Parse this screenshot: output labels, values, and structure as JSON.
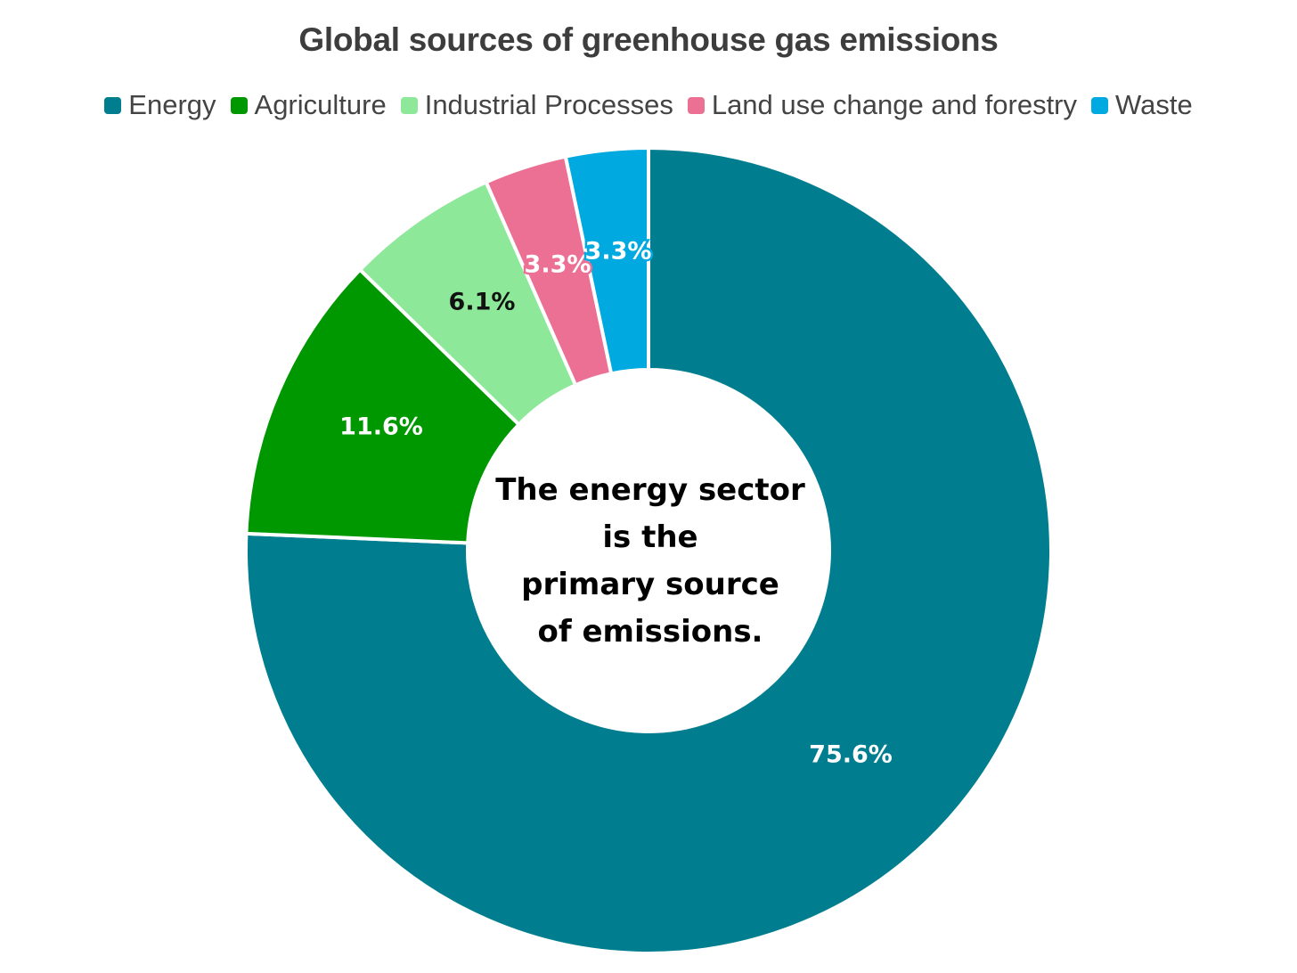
{
  "chart_data": {
    "type": "pie",
    "title": "Global sources of greenhouse gas emissions",
    "legend_position": "top",
    "slices": [
      {
        "name": "Energy",
        "value": 75.6,
        "label": "75.6%",
        "color": "#007d8e",
        "label_color": "#ffffff"
      },
      {
        "name": "Agriculture",
        "value": 11.6,
        "label": "11.6%",
        "color": "#009800",
        "label_color": "#ffffff"
      },
      {
        "name": "Industrial Processes",
        "value": 6.1,
        "label": "6.1%",
        "color": "#8ee89a",
        "label_color": "#111111"
      },
      {
        "name": "Land use change and forestry",
        "value": 3.3,
        "label": "3.3%",
        "color": "#ec7094",
        "label_color": "#ffffff"
      },
      {
        "name": "Waste",
        "value": 3.3,
        "label": "3.3%",
        "color": "#00a9e0",
        "label_color": "#ffffff"
      }
    ],
    "center_annotation": [
      "The energy sector",
      "is the",
      "primary source",
      "of emissions."
    ]
  }
}
